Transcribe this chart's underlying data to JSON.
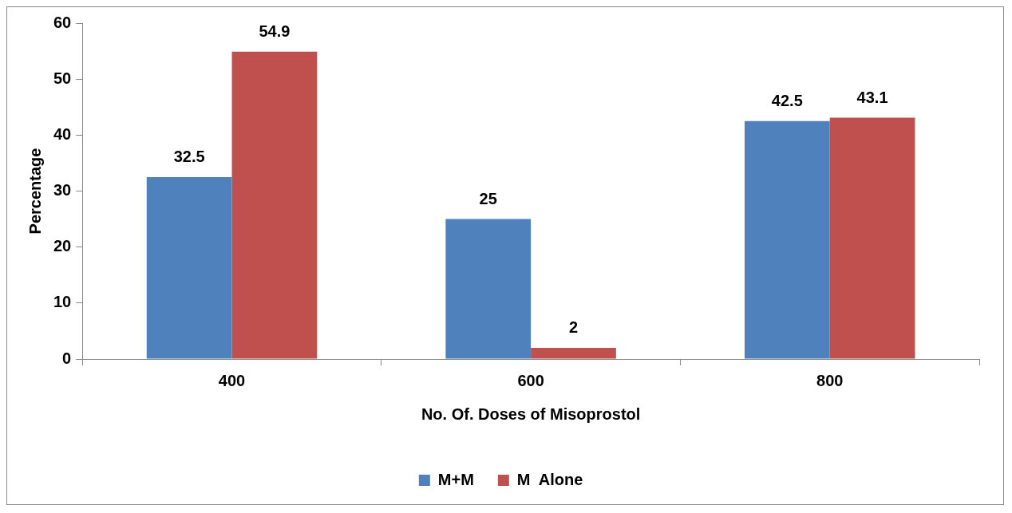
{
  "chart_data": {
    "type": "bar",
    "xlabel": "No. Of. Doses of Misoprostol",
    "ylabel": "Percentage",
    "categories": [
      "400",
      "600",
      "800"
    ],
    "series": [
      {
        "name": "M+M",
        "color": "#4f81bd",
        "values": [
          32.5,
          25,
          42.5
        ]
      },
      {
        "name": "M  Alone",
        "color": "#c0504d",
        "values": [
          54.9,
          2,
          43.1
        ]
      }
    ],
    "ylim": [
      0,
      60
    ],
    "yticks": [
      0,
      10,
      20,
      30,
      40,
      50,
      60
    ],
    "grid": false,
    "legend": "bottom",
    "data_labels": true
  }
}
